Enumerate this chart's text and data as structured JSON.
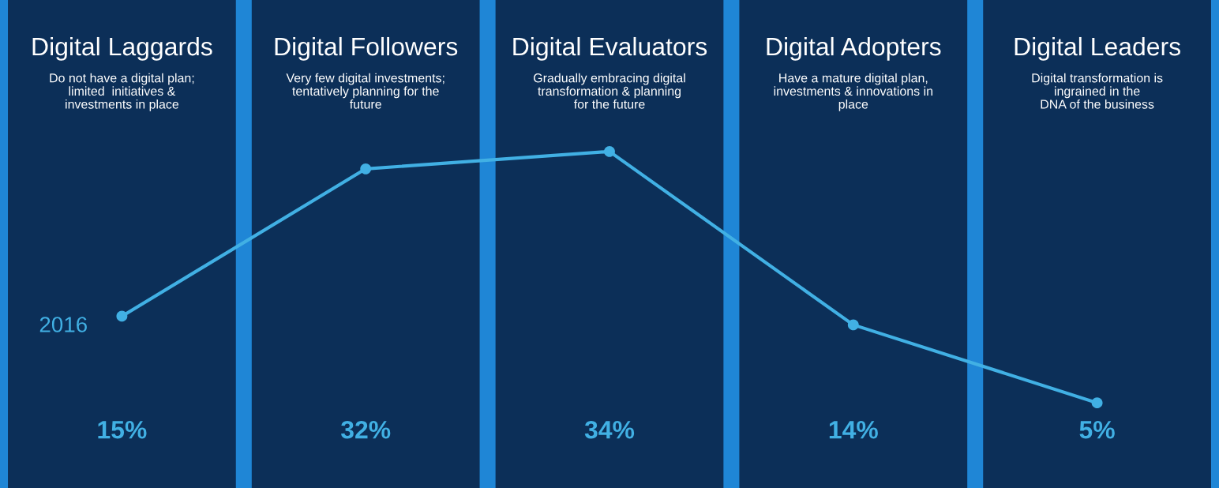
{
  "chart_data": {
    "type": "line",
    "categories": [
      "Digital Laggards",
      "Digital Followers",
      "Digital Evaluators",
      "Digital Adopters",
      "Digital Leaders"
    ],
    "annotations": [
      "Do not have a digital plan;\nlimited  initiatives &\ninvestments in place",
      "Very few digital investments;\ntentatively planning for the\nfuture",
      "Gradually embracing digital\ntransformation & planning\nfor the future",
      "Have a mature digital plan,\ninvestments & innovations in\nplace",
      "Digital transformation is\ningrained in the\nDNA of the business"
    ],
    "series": [
      {
        "name": "2016",
        "color": "#41b0e4",
        "values": [
          15,
          32,
          34,
          14,
          5
        ],
        "value_labels": [
          "15%",
          "32%",
          "34%",
          "14%",
          "5%"
        ]
      }
    ],
    "tick_labels": "x",
    "marker": "circle",
    "line_style": "solid",
    "grid": false,
    "legend": false
  }
}
